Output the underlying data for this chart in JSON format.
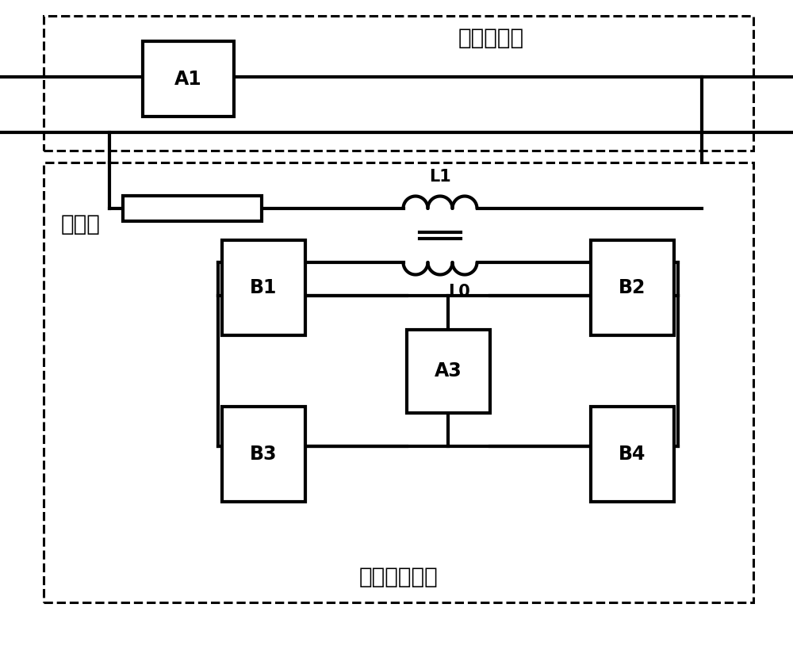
{
  "main_circuit_label": "主电流电路",
  "transfer_circuit_label": "转移电流电路",
  "resistor_label": "电阻器",
  "components": {
    "A1": "A1",
    "A3": "A3",
    "B1": "B1",
    "B2": "B2",
    "B3": "B3",
    "B4": "B4",
    "L1": "L1",
    "L0": "L0"
  },
  "background_color": "#ffffff",
  "line_color": "#000000",
  "font_size_label": 20,
  "font_size_component": 17,
  "font_size_inductor_label": 15,
  "line_width": 3.0,
  "dash_lw": 2.2
}
